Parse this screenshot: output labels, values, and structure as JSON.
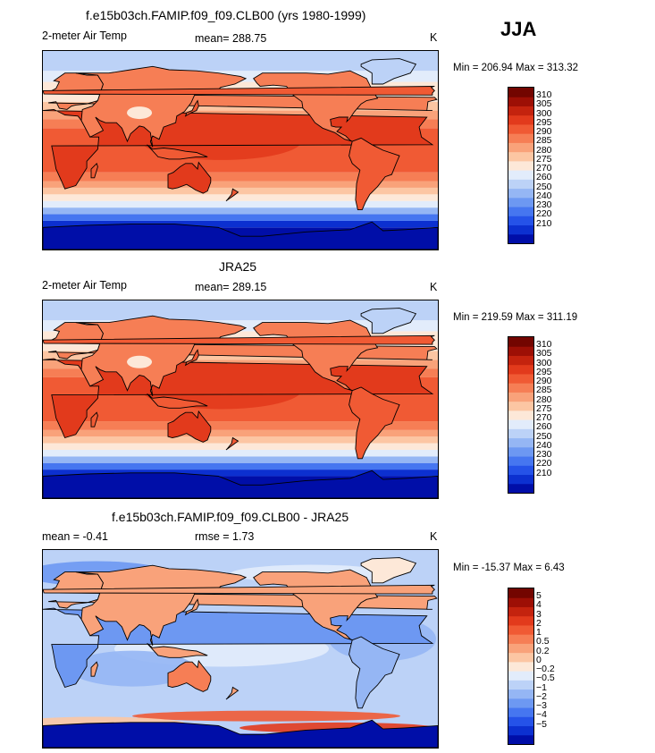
{
  "season": "JJA",
  "colors": {
    "abs_scale": [
      "#000ea8",
      "#0c30d0",
      "#2552e8",
      "#4676f0",
      "#6d98f2",
      "#95b6f4",
      "#bcd2f7",
      "#e2ecfb",
      "#fde8d8",
      "#fcc6a3",
      "#f9a27a",
      "#f67e55",
      "#f05a34",
      "#e23a1c",
      "#c4230e",
      "#9d0f05",
      "#730500"
    ],
    "diff_scale": [
      "#000ea8",
      "#0c30d0",
      "#2552e8",
      "#4676f0",
      "#6d98f2",
      "#95b6f4",
      "#bcd2f7",
      "#e2ecfb",
      "#fde8d8",
      "#fcc6a3",
      "#f9a27a",
      "#f67e55",
      "#f05a34",
      "#e23a1c",
      "#c4230e",
      "#9d0f05",
      "#730500"
    ],
    "land_outline": "#000000"
  },
  "panels": [
    {
      "title": "f.e15b03ch.FAMIP.f09_f09.CLB00 (yrs 1980-1999)",
      "variable": "2-meter Air Temp",
      "stat1": "mean= 288.75",
      "stat2": "",
      "units": "K",
      "minmax": "Min = 206.94 Max = 313.32",
      "colorbar_ticks": [
        "310",
        "305",
        "300",
        "295",
        "290",
        "285",
        "280",
        "275",
        "270",
        "260",
        "250",
        "240",
        "230",
        "220",
        "210"
      ]
    },
    {
      "title": "JRA25",
      "variable": "2-meter Air Temp",
      "stat1": "mean= 289.15",
      "stat2": "",
      "units": "K",
      "minmax": "Min = 219.59 Max = 311.19",
      "colorbar_ticks": [
        "310",
        "305",
        "300",
        "295",
        "290",
        "285",
        "280",
        "275",
        "270",
        "260",
        "250",
        "240",
        "230",
        "220",
        "210"
      ]
    },
    {
      "title": "f.e15b03ch.FAMIP.f09_f09.CLB00 - JRA25",
      "variable": "mean =   -0.41",
      "stat1": "rmse =    1.73",
      "stat2": "",
      "units": "K",
      "minmax": "Min = -15.37 Max =   6.43",
      "colorbar_ticks": [
        "5",
        "4",
        "3",
        "2",
        "1",
        "0.5",
        "0.2",
        "0",
        "-0.2",
        "-0.5",
        "-1",
        "-2",
        "-3",
        "-4",
        "-5"
      ]
    }
  ]
}
